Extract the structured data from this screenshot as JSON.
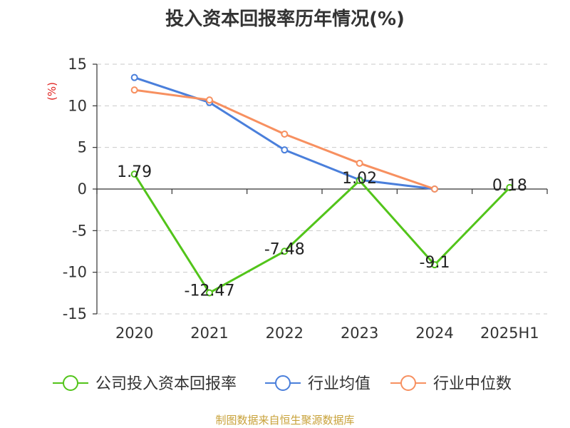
{
  "chart_data": {
    "type": "line",
    "title": "投入资本回报率历年情况(%)",
    "ylabel": "(%)",
    "xlabel": "",
    "categories": [
      "2020",
      "2021",
      "2022",
      "2023",
      "2024",
      "2025H1"
    ],
    "ylim": [
      -15,
      15
    ],
    "yticks": [
      15,
      10,
      5,
      0,
      -5,
      -10,
      -15
    ],
    "grid": true,
    "legend_position": "bottom",
    "series": [
      {
        "name": "公司投入资本回报率",
        "color": "#52c41a",
        "values": [
          1.79,
          -12.47,
          -7.48,
          1.02,
          -9.1,
          0.18
        ],
        "labels": [
          "1.79",
          "-12.47",
          "-7.48",
          "1.02",
          "-9.1",
          "0.18"
        ]
      },
      {
        "name": "行业均值",
        "color": "#4a7fdb",
        "values": [
          13.4,
          10.4,
          4.7,
          1.1,
          0.0,
          null
        ]
      },
      {
        "name": "行业中位数",
        "color": "#f79060",
        "values": [
          11.9,
          10.7,
          6.6,
          3.1,
          0.0,
          null
        ]
      }
    ]
  },
  "source": "制图数据来自恒生聚源数据库"
}
